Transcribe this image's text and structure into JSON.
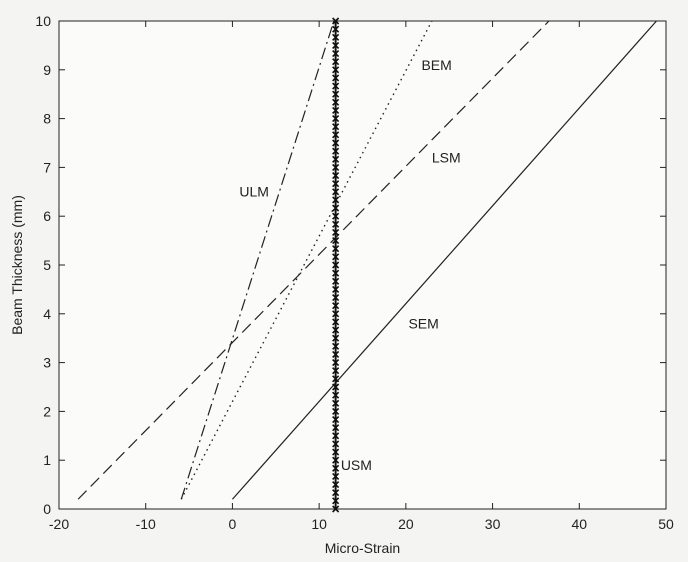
{
  "chart_data": {
    "type": "line",
    "xlabel": "Micro-Strain",
    "ylabel": "Beam Thickness (mm)",
    "xlim": [
      -20,
      50
    ],
    "ylim": [
      0,
      10
    ],
    "xticks": [
      -20,
      -10,
      0,
      10,
      20,
      30,
      40,
      50
    ],
    "yticks": [
      0,
      1,
      2,
      3,
      4,
      5,
      6,
      7,
      8,
      9,
      10
    ],
    "grid": false,
    "series": [
      {
        "name": "ULM",
        "style": "dashdot",
        "points": [
          [
            -5.9,
            0.2
          ],
          [
            11.7,
            10.0
          ]
        ]
      },
      {
        "name": "BEM",
        "style": "dotted",
        "points": [
          [
            -5.9,
            0.2
          ],
          [
            23.0,
            10.0
          ]
        ]
      },
      {
        "name": "LSM",
        "style": "dashed",
        "points": [
          [
            -17.8,
            0.2
          ],
          [
            36.5,
            10.0
          ]
        ]
      },
      {
        "name": "SEM",
        "style": "solid",
        "points": [
          [
            0.0,
            0.2
          ],
          [
            48.9,
            10.0
          ]
        ]
      },
      {
        "name": "USM",
        "style": "marker",
        "points": [
          [
            11.9,
            0.0
          ],
          [
            11.9,
            10.0
          ]
        ]
      }
    ],
    "annotations": [
      {
        "text": "ULM",
        "x": 0.8,
        "y": 6.4
      },
      {
        "text": "BEM",
        "x": 21.8,
        "y": 9.0
      },
      {
        "text": "LSM",
        "x": 23.0,
        "y": 7.1
      },
      {
        "text": "SEM",
        "x": 20.3,
        "y": 3.7
      },
      {
        "text": "USM",
        "x": 12.5,
        "y": 0.8
      }
    ]
  }
}
